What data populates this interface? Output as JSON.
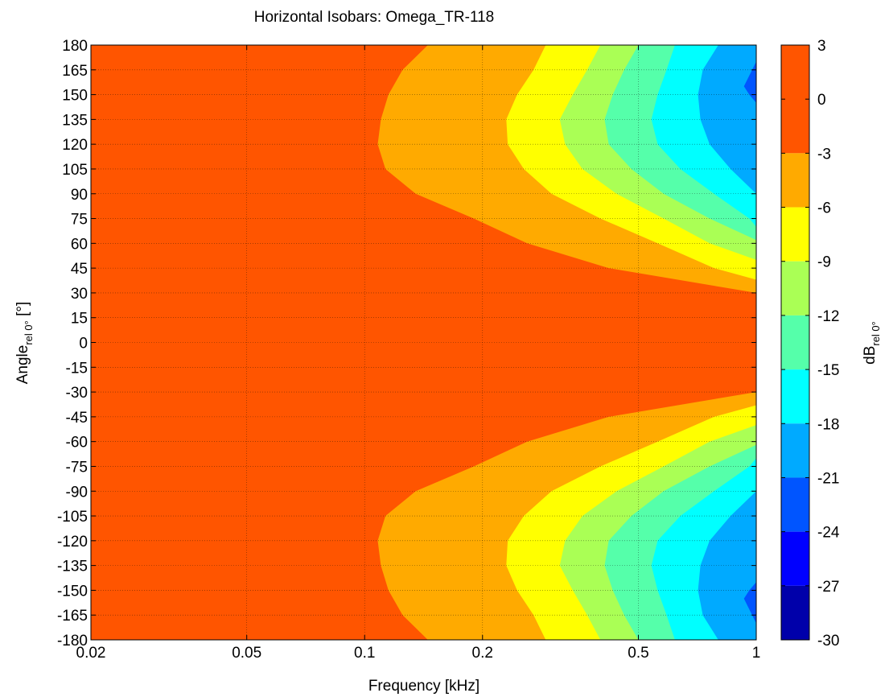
{
  "chart_data": {
    "type": "contour",
    "title": "Horizontal Isobars: Omega_TR-118",
    "xlabel": "Frequency [kHz]",
    "ylabel": {
      "main": "Angle",
      "sub": "rel 0°",
      "unit": " [°]"
    },
    "colorbar_label": {
      "main": "dB",
      "sub": "rel 0°"
    },
    "x_scale": "log",
    "xlim": [
      0.02,
      1
    ],
    "ylim": [
      -180,
      180
    ],
    "x_ticks": [
      {
        "value": 0.02,
        "label": "0.02"
      },
      {
        "value": 0.05,
        "label": "0.05"
      },
      {
        "value": 0.1,
        "label": "0.1"
      },
      {
        "value": 0.2,
        "label": "0.2"
      },
      {
        "value": 0.5,
        "label": "0.5"
      },
      {
        "value": 1,
        "label": "1"
      }
    ],
    "y_ticks": [
      180,
      165,
      150,
      135,
      120,
      105,
      90,
      75,
      60,
      45,
      30,
      15,
      0,
      -15,
      -30,
      -45,
      -60,
      -75,
      -90,
      -105,
      -120,
      -135,
      -150,
      -165,
      -180
    ],
    "grid": true,
    "colorbar_ticks": [
      3,
      0,
      -3,
      -6,
      -9,
      -12,
      -15,
      -18,
      -21,
      -24,
      -27,
      -30
    ],
    "levels": [
      {
        "min": -3,
        "max": 3,
        "color": "#ff5500"
      },
      {
        "min": -6,
        "max": -3,
        "color": "#ffaa00"
      },
      {
        "min": -9,
        "max": -6,
        "color": "#ffff00"
      },
      {
        "min": -12,
        "max": -9,
        "color": "#aaff55"
      },
      {
        "min": -15,
        "max": -12,
        "color": "#55ffaa"
      },
      {
        "min": -18,
        "max": -15,
        "color": "#00ffff"
      },
      {
        "min": -21,
        "max": -18,
        "color": "#00aaff"
      },
      {
        "min": -24,
        "max": -21,
        "color": "#0055ff"
      },
      {
        "min": -27,
        "max": -24,
        "color": "#0000ff"
      },
      {
        "min": -30,
        "max": -27,
        "color": "#0000aa"
      }
    ],
    "contour_boundaries": [
      {
        "level": -3,
        "points": [
          [
            180,
            0.145
          ],
          [
            165,
            0.125
          ],
          [
            150,
            0.115
          ],
          [
            135,
            0.11
          ],
          [
            120,
            0.108
          ],
          [
            105,
            0.113
          ],
          [
            90,
            0.135
          ],
          [
            75,
            0.19
          ],
          [
            60,
            0.26
          ],
          [
            45,
            0.42
          ],
          [
            30,
            1.0
          ]
        ]
      },
      {
        "level": -6,
        "points": [
          [
            180,
            0.29
          ],
          [
            165,
            0.27
          ],
          [
            150,
            0.245
          ],
          [
            135,
            0.23
          ],
          [
            120,
            0.232
          ],
          [
            105,
            0.255
          ],
          [
            90,
            0.3
          ],
          [
            75,
            0.4
          ],
          [
            60,
            0.56
          ],
          [
            45,
            0.78
          ],
          [
            38,
            1.0
          ]
        ]
      },
      {
        "level": -9,
        "points": [
          [
            180,
            0.4
          ],
          [
            165,
            0.37
          ],
          [
            150,
            0.34
          ],
          [
            135,
            0.315
          ],
          [
            120,
            0.325
          ],
          [
            105,
            0.36
          ],
          [
            90,
            0.44
          ],
          [
            75,
            0.58
          ],
          [
            60,
            0.76
          ],
          [
            50,
            1.0
          ]
        ]
      },
      {
        "level": -12,
        "points": [
          [
            180,
            0.5
          ],
          [
            165,
            0.46
          ],
          [
            150,
            0.43
          ],
          [
            135,
            0.41
          ],
          [
            120,
            0.42
          ],
          [
            105,
            0.48
          ],
          [
            90,
            0.58
          ],
          [
            75,
            0.76
          ],
          [
            62,
            1.0
          ]
        ]
      },
      {
        "level": -15,
        "points": [
          [
            180,
            0.62
          ],
          [
            165,
            0.59
          ],
          [
            150,
            0.56
          ],
          [
            135,
            0.54
          ],
          [
            120,
            0.56
          ],
          [
            105,
            0.64
          ],
          [
            90,
            0.78
          ],
          [
            75,
            0.96
          ],
          [
            70,
            1.0
          ]
        ]
      },
      {
        "level": -18,
        "points": [
          [
            180,
            0.8
          ],
          [
            165,
            0.73
          ],
          [
            150,
            0.71
          ],
          [
            135,
            0.72
          ],
          [
            120,
            0.76
          ],
          [
            105,
            0.86
          ],
          [
            90,
            1.0
          ]
        ]
      },
      {
        "level": -21,
        "points": [
          [
            170,
            1.0
          ],
          [
            155,
            0.93
          ],
          [
            150,
            0.96
          ],
          [
            145,
            1.0
          ]
        ]
      }
    ]
  }
}
